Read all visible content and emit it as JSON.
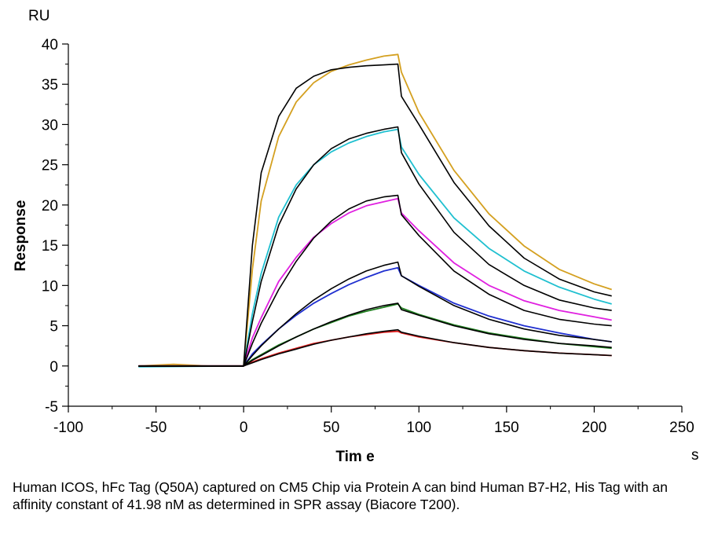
{
  "chart_data": {
    "type": "line",
    "title": "",
    "xlabel": "Tim e",
    "ylabel": "Response",
    "x_unit": "s",
    "y_unit": "RU",
    "xlim": [
      -100,
      250
    ],
    "ylim": [
      -5,
      40
    ],
    "x_ticks": [
      -100,
      -50,
      0,
      50,
      100,
      150,
      200,
      250
    ],
    "y_ticks": [
      -5,
      0,
      5,
      10,
      15,
      20,
      25,
      30,
      35,
      40
    ],
    "grid": false,
    "legend": "none",
    "series": [
      {
        "color": "#d4a020",
        "x": [
          -60,
          -40,
          -20,
          0,
          5,
          10,
          20,
          30,
          40,
          50,
          60,
          70,
          80,
          88,
          90,
          100,
          120,
          140,
          160,
          180,
          200,
          210
        ],
        "y": [
          0,
          0.2,
          0,
          0,
          12,
          20.5,
          28.5,
          32.8,
          35.2,
          36.6,
          37.4,
          38,
          38.5,
          38.7,
          36.5,
          31.5,
          24.3,
          18.9,
          14.9,
          12,
          10.2,
          9.5
        ]
      },
      {
        "color": "#20c0d0",
        "x": [
          -60,
          0,
          5,
          10,
          20,
          30,
          40,
          50,
          60,
          70,
          80,
          88,
          90,
          100,
          120,
          140,
          160,
          180,
          200,
          210
        ],
        "y": [
          -0.1,
          0,
          6.5,
          11.5,
          18.5,
          22.5,
          25,
          26.6,
          27.7,
          28.5,
          29.1,
          29.4,
          27.2,
          23.8,
          18.4,
          14.6,
          11.8,
          9.8,
          8.3,
          7.7
        ]
      },
      {
        "color": "#e020e0",
        "x": [
          -60,
          0,
          5,
          10,
          20,
          30,
          40,
          50,
          60,
          70,
          80,
          88,
          90,
          100,
          120,
          140,
          160,
          180,
          200,
          210
        ],
        "y": [
          0,
          0,
          3.5,
          6,
          10.5,
          13.5,
          16,
          17.7,
          19,
          19.9,
          20.4,
          20.8,
          19,
          16.8,
          12.8,
          10,
          8.1,
          6.9,
          6.1,
          5.7
        ]
      },
      {
        "color": "#2030d0",
        "x": [
          -60,
          0,
          5,
          10,
          20,
          30,
          40,
          50,
          60,
          70,
          80,
          88,
          90,
          100,
          120,
          140,
          160,
          180,
          200,
          210
        ],
        "y": [
          0,
          0,
          1.5,
          2.6,
          4.6,
          6.3,
          7.8,
          9,
          10.1,
          11,
          11.8,
          12.2,
          11.2,
          10,
          7.8,
          6.2,
          5,
          4.1,
          3.3,
          3
        ]
      },
      {
        "color": "#208020",
        "x": [
          -60,
          0,
          5,
          10,
          20,
          30,
          40,
          50,
          60,
          70,
          80,
          88,
          90,
          100,
          120,
          140,
          160,
          180,
          200,
          210
        ],
        "y": [
          0,
          0,
          0.8,
          1.4,
          2.6,
          3.6,
          4.6,
          5.4,
          6.2,
          6.8,
          7.3,
          7.7,
          7.2,
          6.4,
          5.1,
          4.1,
          3.4,
          2.8,
          2.4,
          2.2
        ]
      },
      {
        "color": "#e02020",
        "x": [
          -60,
          0,
          5,
          10,
          20,
          30,
          40,
          50,
          60,
          70,
          80,
          88,
          90,
          100,
          120,
          140,
          160,
          180,
          200,
          210
        ],
        "y": [
          0,
          0,
          0.5,
          0.9,
          1.6,
          2.2,
          2.8,
          3.2,
          3.6,
          3.9,
          4.2,
          4.3,
          4.1,
          3.6,
          2.9,
          2.3,
          1.9,
          1.6,
          1.4,
          1.3
        ]
      },
      {
        "color": "#000000",
        "x": [
          -60,
          0,
          5,
          10,
          20,
          30,
          40,
          50,
          60,
          70,
          80,
          88,
          90,
          100,
          120,
          140,
          160,
          180,
          200,
          210
        ],
        "y": [
          0,
          0,
          15,
          24,
          31,
          34.5,
          36,
          36.8,
          37.1,
          37.3,
          37.4,
          37.5,
          33.5,
          30,
          22.8,
          17.4,
          13.4,
          10.8,
          9.2,
          8.7
        ]
      },
      {
        "color": "#000000",
        "x": [
          -60,
          0,
          5,
          10,
          20,
          30,
          40,
          50,
          60,
          70,
          80,
          88,
          90,
          100,
          120,
          140,
          160,
          180,
          200,
          210
        ],
        "y": [
          0,
          0,
          5.5,
          10.5,
          17.5,
          22,
          25,
          27,
          28.2,
          28.9,
          29.4,
          29.7,
          26.5,
          22.6,
          16.6,
          12.6,
          10,
          8.2,
          7.2,
          6.9
        ]
      },
      {
        "color": "#000000",
        "x": [
          -60,
          0,
          5,
          10,
          20,
          30,
          40,
          50,
          60,
          70,
          80,
          88,
          90,
          100,
          120,
          140,
          160,
          180,
          200,
          210
        ],
        "y": [
          0,
          0,
          2.8,
          5.3,
          9.5,
          13,
          15.9,
          18,
          19.5,
          20.5,
          21,
          21.2,
          18.8,
          16.2,
          11.8,
          8.9,
          6.9,
          5.8,
          5.2,
          5
        ]
      },
      {
        "color": "#000000",
        "x": [
          -60,
          0,
          5,
          10,
          20,
          30,
          40,
          50,
          60,
          70,
          80,
          88,
          90,
          100,
          120,
          140,
          160,
          180,
          200,
          210
        ],
        "y": [
          0,
          0,
          1.3,
          2.5,
          4.6,
          6.5,
          8.2,
          9.6,
          10.8,
          11.8,
          12.5,
          12.9,
          11.2,
          9.9,
          7.5,
          5.8,
          4.6,
          3.8,
          3.3,
          3
        ]
      },
      {
        "color": "#000000",
        "x": [
          -60,
          0,
          5,
          10,
          20,
          30,
          40,
          50,
          60,
          70,
          80,
          88,
          90,
          100,
          120,
          140,
          160,
          180,
          200,
          210
        ],
        "y": [
          0,
          0,
          0.7,
          1.3,
          2.5,
          3.6,
          4.6,
          5.5,
          6.3,
          7,
          7.5,
          7.8,
          7,
          6.3,
          5,
          4,
          3.3,
          2.8,
          2.5,
          2.3
        ]
      },
      {
        "color": "#000000",
        "x": [
          -60,
          0,
          5,
          10,
          20,
          30,
          40,
          50,
          60,
          70,
          80,
          88,
          90,
          100,
          120,
          140,
          160,
          180,
          200,
          210
        ],
        "y": [
          0,
          0,
          0.4,
          0.8,
          1.5,
          2.1,
          2.7,
          3.2,
          3.6,
          4,
          4.3,
          4.5,
          4.2,
          3.7,
          2.9,
          2.3,
          1.9,
          1.6,
          1.4,
          1.3
        ]
      }
    ]
  },
  "caption": "Human ICOS, hFc Tag (Q50A) captured on CM5 Chip via Protein A can bind Human B7-H2, His Tag with an affinity constant of 41.98 nM as determined in SPR assay (Biacore T200)."
}
